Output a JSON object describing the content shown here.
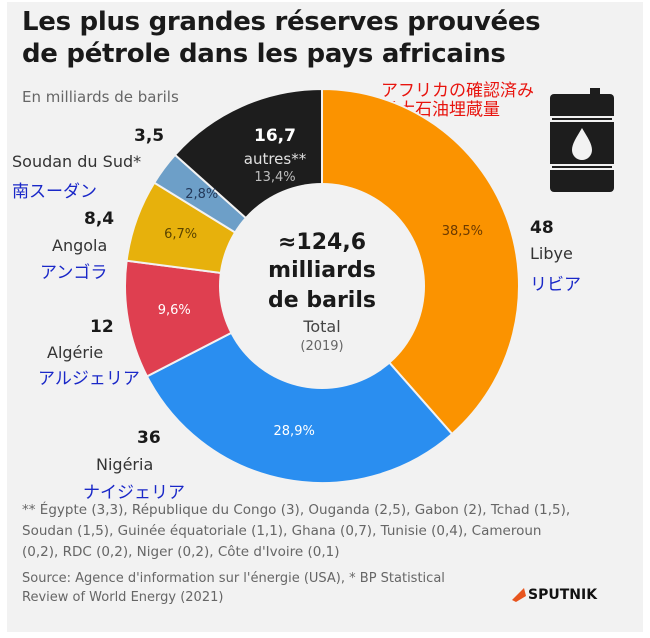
{
  "title_line1": "Les plus grandes réserves prouvées",
  "title_line2": "de pétrole dans les pays africains",
  "subtitle": "En milliards de barils",
  "jp_title_line1": "アフリカの確認済み",
  "jp_title_line2": "最大石油埋蔵量",
  "center": {
    "value": "≈124,6",
    "line2": "milliards",
    "line3": "de barils",
    "line4": "Total",
    "line5": "(2019)"
  },
  "labels": {
    "libye": {
      "value": "48",
      "name": "Libye",
      "jp": "リビア",
      "pct": "38,5%"
    },
    "nigeria": {
      "value": "36",
      "name": "Nigéria",
      "jp": "ナイジェリア",
      "pct": "28,9%"
    },
    "algerie": {
      "value": "12",
      "name": "Algérie",
      "jp": "アルジェリア",
      "pct": "9,6%"
    },
    "angola": {
      "value": "8,4",
      "name": "Angola",
      "jp": "アンゴラ",
      "pct": "6,7%"
    },
    "soudan": {
      "value": "3,5",
      "name": "Soudan du Sud*",
      "jp": "南スーダン",
      "pct": "2,8%"
    },
    "autres": {
      "value": "16,7",
      "name": "autres**",
      "pct": "13,4%"
    }
  },
  "footnote": "** Égypte (3,3), République du Congo (3), Ouganda (2,5), Gabon (2), Tchad (1,5), Soudan (1,5), Guinée équatoriale (1,1), Ghana (0,7), Tunisie (0,4), Cameroun (0,2), RDC (0,2), Niger (0,2), Côte d'Ivoire (0,1)",
  "source": "Source: Agence d'information sur l'énergie (USA), * BP Statistical Review of World Energy (2021)",
  "logo": "SPUTNIK",
  "chart_data": {
    "type": "pie",
    "variant": "donut",
    "unit": "milliards de barils",
    "total": 124.6,
    "slices": [
      {
        "name": "Libye",
        "value": 48,
        "percent": 38.5,
        "color": "#fb9300"
      },
      {
        "name": "Nigéria",
        "value": 36,
        "percent": 28.9,
        "color": "#2a8ef0"
      },
      {
        "name": "Algérie",
        "value": 12,
        "percent": 9.6,
        "color": "#df3f50"
      },
      {
        "name": "Angola",
        "value": 8.4,
        "percent": 6.7,
        "color": "#e7b10c"
      },
      {
        "name": "Soudan du Sud*",
        "value": 3.5,
        "percent": 2.8,
        "color": "#6d9fc8"
      },
      {
        "name": "autres**",
        "value": 16.7,
        "percent": 13.4,
        "color": "#1d1d1d"
      }
    ]
  }
}
